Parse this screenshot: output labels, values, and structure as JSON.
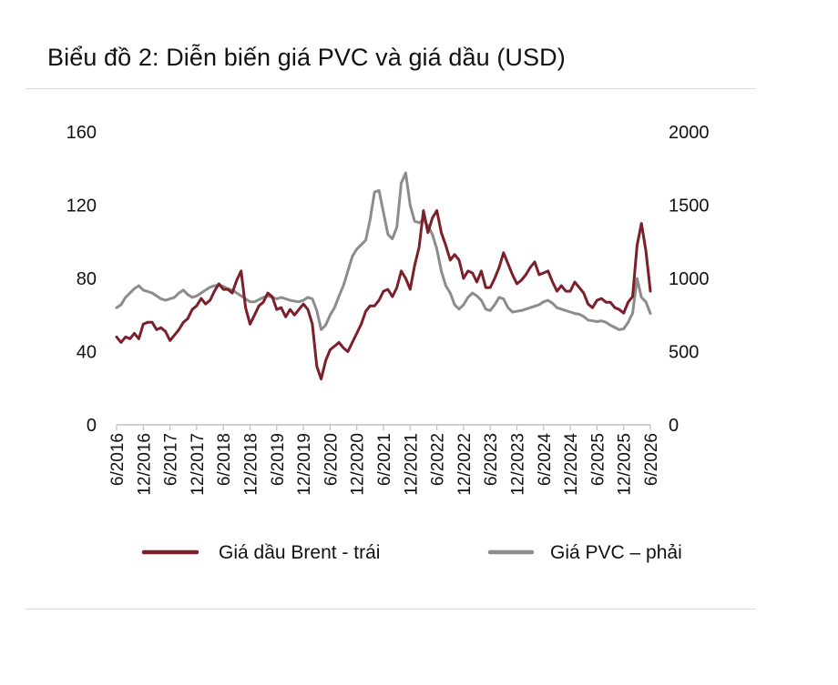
{
  "title": "Biểu đồ 2: Diễn biến giá PVC và giá dầu (USD)",
  "chart_data": {
    "type": "line",
    "title": "Biểu đồ 2: Diễn biến giá PVC và giá dầu (USD)",
    "x_categories": [
      "6/2016",
      "12/2016",
      "6/2017",
      "12/2017",
      "6/2018",
      "12/2018",
      "6/2019",
      "12/2019",
      "6/2020",
      "12/2020",
      "6/2021",
      "12/2021",
      "6/2022",
      "12/2022",
      "6/2023",
      "12/2023",
      "6/2024",
      "12/2024",
      "6/2025",
      "12/2025",
      "6/2026"
    ],
    "x_start": "2016-06",
    "y_left": {
      "ticks": [
        0,
        40,
        80,
        120,
        160
      ],
      "ylim": [
        0,
        160
      ]
    },
    "y_right": {
      "ticks": [
        0,
        500,
        1000,
        1500,
        2000
      ],
      "ylim": [
        0,
        2000
      ]
    },
    "grid": false,
    "legend_position": "bottom",
    "series": [
      {
        "name": "Giá dầu Brent - trái",
        "axis": "left",
        "color": "#7b1f2a",
        "points": [
          [
            "2016-06",
            48
          ],
          [
            "2016-07",
            45
          ],
          [
            "2016-08",
            48
          ],
          [
            "2016-09",
            47
          ],
          [
            "2016-10",
            50
          ],
          [
            "2016-11",
            47
          ],
          [
            "2016-12",
            55
          ],
          [
            "2017-01",
            56
          ],
          [
            "2017-02",
            56
          ],
          [
            "2017-03",
            52
          ],
          [
            "2017-04",
            53
          ],
          [
            "2017-05",
            51
          ],
          [
            "2017-06",
            46
          ],
          [
            "2017-07",
            49
          ],
          [
            "2017-08",
            52
          ],
          [
            "2017-09",
            56
          ],
          [
            "2017-10",
            58
          ],
          [
            "2017-11",
            63
          ],
          [
            "2017-12",
            65
          ],
          [
            "2018-01",
            69
          ],
          [
            "2018-02",
            66
          ],
          [
            "2018-03",
            68
          ],
          [
            "2018-04",
            73
          ],
          [
            "2018-05",
            77
          ],
          [
            "2018-06",
            74
          ],
          [
            "2018-07",
            74
          ],
          [
            "2018-08",
            72
          ],
          [
            "2018-09",
            79
          ],
          [
            "2018-10",
            84
          ],
          [
            "2018-11",
            64
          ],
          [
            "2018-12",
            55
          ],
          [
            "2019-01",
            60
          ],
          [
            "2019-02",
            65
          ],
          [
            "2019-03",
            67
          ],
          [
            "2019-04",
            72
          ],
          [
            "2019-05",
            70
          ],
          [
            "2019-06",
            63
          ],
          [
            "2019-07",
            64
          ],
          [
            "2019-08",
            59
          ],
          [
            "2019-09",
            63
          ],
          [
            "2019-10",
            60
          ],
          [
            "2019-11",
            63
          ],
          [
            "2019-12",
            66
          ],
          [
            "2020-01",
            63
          ],
          [
            "2020-02",
            55
          ],
          [
            "2020-03",
            32
          ],
          [
            "2020-04",
            25
          ],
          [
            "2020-05",
            35
          ],
          [
            "2020-06",
            41
          ],
          [
            "2020-07",
            43
          ],
          [
            "2020-08",
            45
          ],
          [
            "2020-09",
            42
          ],
          [
            "2020-10",
            40
          ],
          [
            "2020-11",
            45
          ],
          [
            "2020-12",
            50
          ],
          [
            "2021-01",
            55
          ],
          [
            "2021-02",
            62
          ],
          [
            "2021-03",
            65
          ],
          [
            "2021-04",
            65
          ],
          [
            "2021-05",
            68
          ],
          [
            "2021-06",
            73
          ],
          [
            "2021-07",
            74
          ],
          [
            "2021-08",
            70
          ],
          [
            "2021-09",
            75
          ],
          [
            "2021-10",
            84
          ],
          [
            "2021-11",
            80
          ],
          [
            "2021-12",
            74
          ],
          [
            "2022-01",
            87
          ],
          [
            "2022-02",
            97
          ],
          [
            "2022-03",
            117
          ],
          [
            "2022-04",
            105
          ],
          [
            "2022-05",
            113
          ],
          [
            "2022-06",
            117
          ],
          [
            "2022-07",
            105
          ],
          [
            "2022-08",
            98
          ],
          [
            "2022-09",
            90
          ],
          [
            "2022-10",
            93
          ],
          [
            "2022-11",
            90
          ],
          [
            "2022-12",
            80
          ],
          [
            "2023-01",
            84
          ],
          [
            "2023-02",
            83
          ],
          [
            "2023-03",
            78
          ],
          [
            "2023-04",
            84
          ],
          [
            "2023-05",
            75
          ],
          [
            "2023-06",
            75
          ],
          [
            "2023-07",
            80
          ],
          [
            "2023-08",
            86
          ],
          [
            "2023-09",
            94
          ],
          [
            "2023-10",
            88
          ],
          [
            "2023-11",
            82
          ],
          [
            "2023-12",
            77
          ],
          [
            "2024-01",
            79
          ],
          [
            "2024-02",
            82
          ],
          [
            "2024-03",
            86
          ],
          [
            "2024-04",
            89
          ],
          [
            "2024-05",
            82
          ],
          [
            "2024-06",
            83
          ],
          [
            "2024-07",
            84
          ],
          [
            "2024-08",
            78
          ],
          [
            "2024-09",
            73
          ],
          [
            "2024-10",
            76
          ],
          [
            "2024-11",
            73
          ],
          [
            "2024-12",
            73
          ],
          [
            "2025-01",
            78
          ],
          [
            "2025-02",
            75
          ],
          [
            "2025-03",
            72
          ],
          [
            "2025-04",
            66
          ],
          [
            "2025-05",
            64
          ],
          [
            "2025-06",
            68
          ],
          [
            "2025-07",
            69
          ],
          [
            "2025-08",
            67
          ],
          [
            "2025-09",
            67
          ],
          [
            "2025-10",
            64
          ],
          [
            "2025-11",
            63
          ],
          [
            "2025-12",
            61
          ],
          [
            "2026-01",
            67
          ],
          [
            "2026-02",
            70
          ],
          [
            "2026-03",
            98
          ],
          [
            "2026-04",
            110
          ],
          [
            "2026-05",
            95
          ],
          [
            "2026-06",
            73
          ]
        ]
      },
      {
        "name": "Giá PVC – phải",
        "axis": "right",
        "color": "#8c8c8c",
        "points": [
          [
            "2016-06",
            800
          ],
          [
            "2016-07",
            820
          ],
          [
            "2016-08",
            870
          ],
          [
            "2016-09",
            900
          ],
          [
            "2016-10",
            930
          ],
          [
            "2016-11",
            950
          ],
          [
            "2016-12",
            920
          ],
          [
            "2017-01",
            910
          ],
          [
            "2017-02",
            900
          ],
          [
            "2017-03",
            880
          ],
          [
            "2017-04",
            860
          ],
          [
            "2017-05",
            850
          ],
          [
            "2017-06",
            860
          ],
          [
            "2017-07",
            870
          ],
          [
            "2017-08",
            900
          ],
          [
            "2017-09",
            920
          ],
          [
            "2017-10",
            890
          ],
          [
            "2017-11",
            870
          ],
          [
            "2017-12",
            880
          ],
          [
            "2018-01",
            900
          ],
          [
            "2018-02",
            920
          ],
          [
            "2018-03",
            940
          ],
          [
            "2018-04",
            950
          ],
          [
            "2018-05",
            955
          ],
          [
            "2018-06",
            945
          ],
          [
            "2018-07",
            930
          ],
          [
            "2018-08",
            920
          ],
          [
            "2018-09",
            900
          ],
          [
            "2018-10",
            880
          ],
          [
            "2018-11",
            860
          ],
          [
            "2018-12",
            840
          ],
          [
            "2019-01",
            840
          ],
          [
            "2019-02",
            855
          ],
          [
            "2019-03",
            870
          ],
          [
            "2019-04",
            880
          ],
          [
            "2019-05",
            870
          ],
          [
            "2019-06",
            860
          ],
          [
            "2019-07",
            870
          ],
          [
            "2019-08",
            860
          ],
          [
            "2019-09",
            850
          ],
          [
            "2019-10",
            845
          ],
          [
            "2019-11",
            840
          ],
          [
            "2019-12",
            850
          ],
          [
            "2020-01",
            870
          ],
          [
            "2020-02",
            860
          ],
          [
            "2020-03",
            780
          ],
          [
            "2020-04",
            650
          ],
          [
            "2020-05",
            680
          ],
          [
            "2020-06",
            750
          ],
          [
            "2020-07",
            800
          ],
          [
            "2020-08",
            880
          ],
          [
            "2020-09",
            950
          ],
          [
            "2020-10",
            1050
          ],
          [
            "2020-11",
            1150
          ],
          [
            "2020-12",
            1200
          ],
          [
            "2021-01",
            1230
          ],
          [
            "2021-02",
            1260
          ],
          [
            "2021-03",
            1400
          ],
          [
            "2021-04",
            1590
          ],
          [
            "2021-05",
            1600
          ],
          [
            "2021-06",
            1450
          ],
          [
            "2021-07",
            1300
          ],
          [
            "2021-08",
            1270
          ],
          [
            "2021-09",
            1350
          ],
          [
            "2021-10",
            1650
          ],
          [
            "2021-11",
            1720
          ],
          [
            "2021-12",
            1500
          ],
          [
            "2022-01",
            1390
          ],
          [
            "2022-02",
            1380
          ],
          [
            "2022-03",
            1400
          ],
          [
            "2022-04",
            1360
          ],
          [
            "2022-05",
            1300
          ],
          [
            "2022-06",
            1200
          ],
          [
            "2022-07",
            1050
          ],
          [
            "2022-08",
            950
          ],
          [
            "2022-09",
            900
          ],
          [
            "2022-10",
            820
          ],
          [
            "2022-11",
            790
          ],
          [
            "2022-12",
            820
          ],
          [
            "2023-01",
            870
          ],
          [
            "2023-02",
            900
          ],
          [
            "2023-03",
            880
          ],
          [
            "2023-04",
            850
          ],
          [
            "2023-05",
            790
          ],
          [
            "2023-06",
            780
          ],
          [
            "2023-07",
            820
          ],
          [
            "2023-08",
            870
          ],
          [
            "2023-09",
            860
          ],
          [
            "2023-10",
            800
          ],
          [
            "2023-11",
            770
          ],
          [
            "2023-12",
            775
          ],
          [
            "2024-01",
            780
          ],
          [
            "2024-02",
            790
          ],
          [
            "2024-03",
            800
          ],
          [
            "2024-04",
            810
          ],
          [
            "2024-05",
            820
          ],
          [
            "2024-06",
            840
          ],
          [
            "2024-07",
            850
          ],
          [
            "2024-08",
            830
          ],
          [
            "2024-09",
            800
          ],
          [
            "2024-10",
            790
          ],
          [
            "2024-11",
            780
          ],
          [
            "2024-12",
            770
          ],
          [
            "2025-01",
            760
          ],
          [
            "2025-02",
            755
          ],
          [
            "2025-03",
            740
          ],
          [
            "2025-04",
            715
          ],
          [
            "2025-05",
            710
          ],
          [
            "2025-06",
            705
          ],
          [
            "2025-07",
            710
          ],
          [
            "2025-08",
            700
          ],
          [
            "2025-09",
            680
          ],
          [
            "2025-10",
            665
          ],
          [
            "2025-11",
            650
          ],
          [
            "2025-12",
            655
          ],
          [
            "2026-01",
            700
          ],
          [
            "2026-02",
            760
          ],
          [
            "2026-03",
            1000
          ],
          [
            "2026-04",
            870
          ],
          [
            "2026-05",
            840
          ],
          [
            "2026-06",
            760
          ]
        ]
      }
    ]
  },
  "colors": {
    "brent": "#7b1f2a",
    "pvc": "#8c8c8c",
    "axis": "#bfbfbf",
    "rule": "#d9d9d9"
  }
}
